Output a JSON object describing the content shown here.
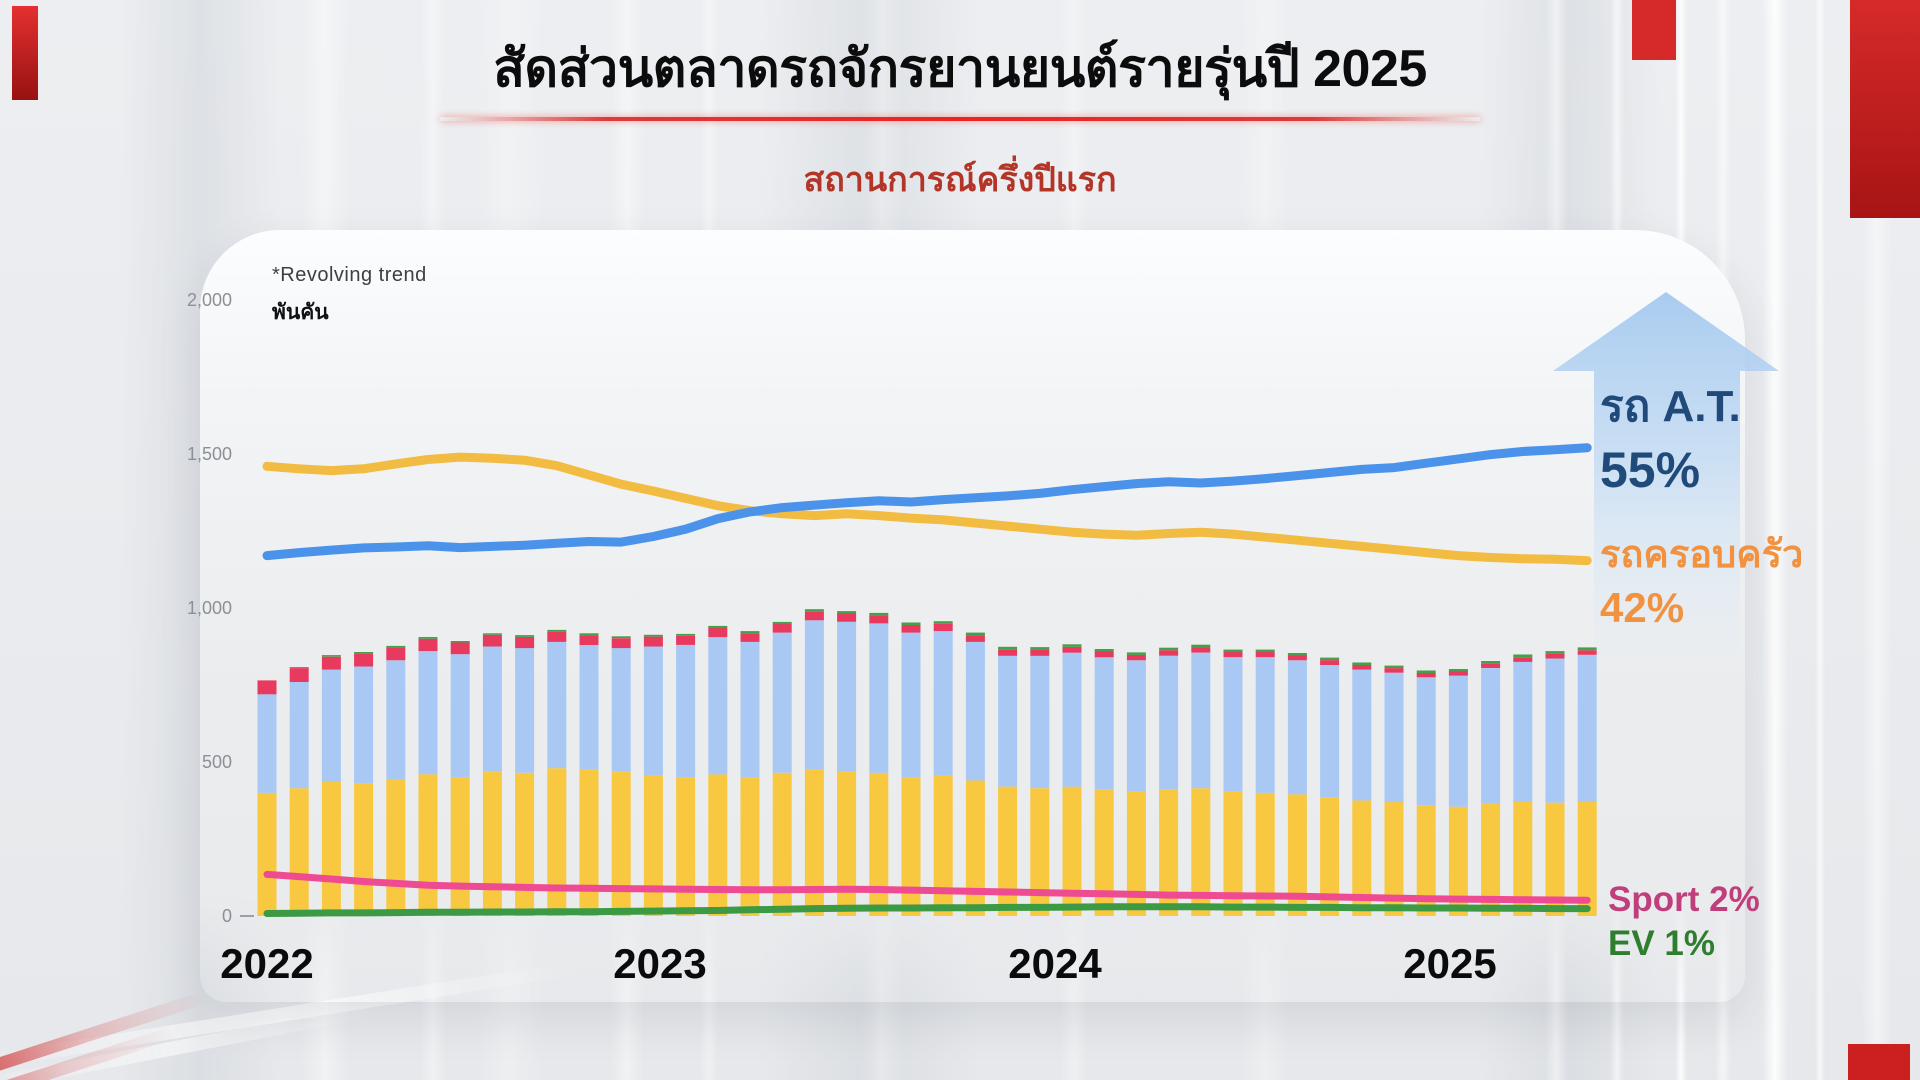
{
  "header": {
    "title": "สัดส่วนตลาดรถจักรยานยนต์รายรุ่นปี 2025",
    "subtitle": "สถานการณ์ครึ่งปีแรก"
  },
  "legend": {
    "at_label": "รถ A.T.",
    "at_value": "55%",
    "family_label": "รถครอบครัว",
    "family_value": "42%",
    "sport_label": "Sport 2%",
    "ev_label": "EV 1%"
  },
  "colors": {
    "bar_family": "#f9c841",
    "bar_at": "#a9c9f4",
    "bar_sport": "#e83a5f",
    "bar_ev": "#45a049",
    "line_at": "#4b92ea",
    "line_family": "#f2bb41",
    "line_sport": "#ef4b92",
    "line_ev": "#3d9a44",
    "text_at": "#1f4a7a",
    "text_family": "#f0923f",
    "text_sport": "#c03e7c",
    "text_ev": "#2f7d2f",
    "subtitle_red": "#b23527",
    "divider_red": "#ea2424",
    "arrow_blue": "#a6caef"
  },
  "chart_data": {
    "type": "bar+line",
    "note": "*Revolving trend",
    "unit_label": "พันคัน",
    "grid": "off",
    "ylim": [
      0,
      2000
    ],
    "y_ticks": [
      "2,000",
      "1,500",
      "1,000",
      "500",
      "0"
    ],
    "y_tick_values": [
      2000,
      1500,
      1000,
      500,
      0
    ],
    "x_year_labels": [
      "2022",
      "2023",
      "2024",
      "2025"
    ],
    "months_per_year": [
      12,
      12,
      12,
      6
    ],
    "bar_series": [
      {
        "name": "family-bar",
        "color": "#f9c841",
        "values": [
          400,
          415,
          435,
          430,
          445,
          460,
          450,
          470,
          465,
          480,
          475,
          470,
          455,
          450,
          460,
          450,
          465,
          475,
          470,
          465,
          450,
          455,
          440,
          420,
          415,
          420,
          410,
          405,
          410,
          415,
          405,
          400,
          395,
          385,
          375,
          370,
          360,
          355,
          365,
          370,
          368,
          370
        ]
      },
      {
        "name": "at-bar",
        "color": "#a9c9f4",
        "values": [
          320,
          345,
          365,
          380,
          385,
          400,
          400,
          405,
          405,
          410,
          405,
          400,
          420,
          430,
          445,
          440,
          455,
          485,
          485,
          485,
          470,
          470,
          450,
          425,
          430,
          435,
          430,
          425,
          435,
          440,
          435,
          440,
          435,
          430,
          425,
          420,
          415,
          425,
          440,
          455,
          468,
          478
        ]
      },
      {
        "name": "sport-bar",
        "color": "#e83a5f",
        "values": [
          45,
          45,
          42,
          42,
          42,
          40,
          38,
          38,
          36,
          33,
          32,
          32,
          32,
          30,
          30,
          28,
          28,
          28,
          27,
          26,
          25,
          24,
          22,
          21,
          20,
          19,
          19,
          18,
          18,
          18,
          17,
          17,
          16,
          16,
          15,
          15,
          14,
          14,
          14,
          15,
          15,
          15
        ]
      },
      {
        "name": "ev-bar",
        "color": "#45a049",
        "values": [
          0,
          3,
          5,
          5,
          5,
          6,
          5,
          5,
          6,
          6,
          6,
          6,
          6,
          6,
          7,
          7,
          7,
          8,
          8,
          8,
          8,
          8,
          8,
          8,
          8,
          8,
          8,
          8,
          8,
          8,
          8,
          8,
          8,
          8,
          8,
          8,
          8,
          8,
          9,
          9,
          9,
          9
        ]
      }
    ],
    "line_series": [
      {
        "name": "ev",
        "color": "#3d9a44",
        "width": 7,
        "values": [
          8,
          9,
          10,
          10,
          11,
          12,
          12,
          13,
          13,
          14,
          14,
          15,
          16,
          17,
          18,
          20,
          22,
          24,
          25,
          26,
          26,
          27,
          27,
          28,
          28,
          29,
          30,
          30,
          30,
          30,
          29,
          29,
          28,
          28,
          27,
          27,
          26,
          26,
          25,
          25,
          24,
          24
        ]
      },
      {
        "name": "sport",
        "color": "#ef4b92",
        "width": 7,
        "values": [
          135,
          128,
          120,
          112,
          106,
          100,
          97,
          95,
          93,
          91,
          90,
          89,
          88,
          87,
          86,
          85,
          85,
          86,
          87,
          86,
          84,
          82,
          80,
          78,
          76,
          74,
          72,
          70,
          68,
          67,
          66,
          65,
          64,
          62,
          60,
          58,
          56,
          55,
          54,
          53,
          52,
          51
        ]
      },
      {
        "name": "family",
        "color": "#f2bb41",
        "width": 9,
        "values": [
          1460,
          1452,
          1446,
          1452,
          1468,
          1482,
          1490,
          1486,
          1480,
          1462,
          1432,
          1402,
          1380,
          1356,
          1332,
          1316,
          1306,
          1300,
          1306,
          1300,
          1292,
          1286,
          1276,
          1266,
          1256,
          1246,
          1240,
          1236,
          1242,
          1246,
          1240,
          1230,
          1220,
          1210,
          1200,
          1190,
          1180,
          1170,
          1164,
          1160,
          1158,
          1154
        ]
      },
      {
        "name": "at",
        "color": "#4b92ea",
        "width": 9,
        "values": [
          1170,
          1180,
          1188,
          1195,
          1198,
          1202,
          1196,
          1200,
          1204,
          1210,
          1216,
          1214,
          1232,
          1256,
          1290,
          1312,
          1326,
          1334,
          1342,
          1348,
          1344,
          1352,
          1358,
          1364,
          1372,
          1384,
          1394,
          1404,
          1410,
          1406,
          1412,
          1420,
          1430,
          1440,
          1450,
          1456,
          1470,
          1484,
          1498,
          1508,
          1514,
          1520
        ]
      }
    ]
  }
}
